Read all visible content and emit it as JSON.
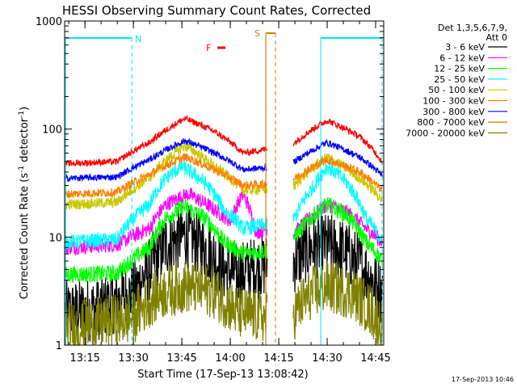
{
  "chart_data": {
    "type": "line",
    "title": "HESSI Observing Summary Count Rates, Corrected",
    "xlabel": "Start Time (17-Sep-13 13:08:42)",
    "ylabel": "Corrected Count Rate (s⁻¹ detector⁻¹)",
    "ylabel_main": "Corrected Count Rate (s",
    "ylabel_mid": " detector",
    "ylabel_end": ")",
    "ylabel_sup": "-1",
    "y_scale": "log",
    "ylim": [
      1,
      1000
    ],
    "xlim": [
      "13:08:42",
      "14:47:30"
    ],
    "xlim_min": [
      788.7,
      887.5
    ],
    "x_ticks": [
      "13:15",
      "13:30",
      "13:45",
      "14:00",
      "14:15",
      "14:30",
      "14:45"
    ],
    "x_ticks_min": [
      795,
      810,
      825,
      840,
      855,
      870,
      885
    ],
    "y_ticks": [
      "1",
      "10",
      "100",
      "1000"
    ],
    "y_ticks_val": [
      1,
      10,
      100,
      1000
    ],
    "grid": false,
    "legend_position": "right",
    "legend_header": [
      "Det 1,3,5,6,7,9,",
      "Att 0"
    ],
    "timestamp": "17-Sep-2013 10:46",
    "gap_min": [
      851.5,
      859.5
    ],
    "series": [
      {
        "name": "3 - 6 keV",
        "color": "#000000",
        "base": 2.3,
        "peak": 10,
        "center": 826,
        "width": 8,
        "noise": 0.3,
        "x": [
          789,
          800,
          810,
          815,
          820,
          826,
          832,
          838,
          842,
          846,
          851,
          860,
          865,
          870,
          875,
          880,
          884,
          887
        ],
        "y": [
          2.0,
          2.2,
          3.0,
          5.0,
          8.5,
          10.5,
          8.0,
          5.0,
          4.5,
          5.0,
          5.5,
          6.0,
          8.0,
          8.5,
          7.5,
          5.5,
          4.0,
          3.0
        ]
      },
      {
        "name": "6 - 12 keV",
        "color": "#ff00ff",
        "base": 8,
        "peak": 25,
        "center": 827,
        "width": 9,
        "noise": 0.07,
        "x": [
          789,
          805,
          815,
          820,
          827,
          835,
          840,
          844,
          848,
          851,
          860,
          866,
          870,
          876,
          882,
          887
        ],
        "y": [
          8,
          8.5,
          12,
          20,
          25,
          18,
          14,
          25,
          11,
          12,
          11,
          16,
          20,
          17,
          12,
          9
        ]
      },
      {
        "name": "12 - 25 keV",
        "color": "#00ff00",
        "base": 4.5,
        "peak": 19,
        "center": 826,
        "width": 9,
        "noise": 0.08,
        "x": [
          789,
          805,
          815,
          820,
          826,
          832,
          838,
          844,
          851,
          860,
          866,
          870,
          876,
          882,
          887
        ],
        "y": [
          4.5,
          4.6,
          8,
          15,
          19,
          15,
          9,
          7,
          7.5,
          10,
          16,
          20,
          16,
          9,
          6
        ]
      },
      {
        "name": "25 - 50 keV",
        "color": "#00ffff",
        "base": 9,
        "peak": 45,
        "center": 825,
        "width": 9,
        "noise": 0.07,
        "x": [
          789,
          805,
          815,
          820,
          825,
          832,
          838,
          844,
          851,
          860,
          866,
          870,
          876,
          882,
          887
        ],
        "y": [
          9,
          9.5,
          20,
          35,
          45,
          32,
          18,
          12,
          13,
          15,
          30,
          45,
          32,
          15,
          9
        ]
      },
      {
        "name": "50 - 100 keV",
        "color": "#c8c800",
        "base": 20,
        "peak": 70,
        "center": 826,
        "width": 10,
        "noise": 0.05,
        "x": [
          789,
          805,
          815,
          826,
          835,
          844,
          851,
          860,
          870,
          880,
          887
        ],
        "y": [
          20,
          21,
          35,
          70,
          45,
          27,
          28,
          30,
          55,
          35,
          22
        ]
      },
      {
        "name": "100 - 300 keV",
        "color": "#ff7f00",
        "base": 25,
        "peak": 55,
        "center": 826,
        "width": 12,
        "noise": 0.04,
        "x": [
          789,
          805,
          815,
          826,
          835,
          844,
          851,
          860,
          870,
          880,
          887
        ],
        "y": [
          25,
          26,
          38,
          55,
          42,
          30,
          31,
          35,
          52,
          40,
          27
        ]
      },
      {
        "name": "300 - 800 keV",
        "color": "#0000ff",
        "base": 35,
        "peak": 78,
        "center": 826,
        "width": 13,
        "noise": 0.03,
        "x": [
          789,
          805,
          815,
          826,
          835,
          844,
          851,
          860,
          870,
          880,
          887
        ],
        "y": [
          35,
          36,
          52,
          78,
          60,
          42,
          44,
          50,
          75,
          55,
          37
        ]
      },
      {
        "name": "800 - 7000 keV",
        "color": "#d08000",
        "base": 0,
        "peak": 0,
        "center": 0,
        "width": 0,
        "noise": 0,
        "x": [],
        "y": []
      },
      {
        "name": "7000 - 20000 keV",
        "color": "#808000",
        "base": 2.0,
        "peak": 3.5,
        "center": 826,
        "width": 10,
        "noise": 0.25,
        "x": [
          789,
          800,
          810,
          818,
          826,
          834,
          842,
          851,
          860,
          865,
          870,
          878,
          884,
          887
        ],
        "y": [
          1.4,
          1.6,
          1.8,
          3.0,
          3.5,
          3.2,
          2.0,
          1.8,
          2.0,
          3.0,
          3.5,
          3.0,
          2.0,
          1.5
        ]
      },
      {
        "name": "",
        "color": "#ff0000",
        "base": 48,
        "peak": 125,
        "center": 826,
        "width": 12,
        "noise": 0.03,
        "x": [
          789,
          805,
          815,
          826,
          835,
          844,
          851,
          860,
          870,
          880,
          887
        ],
        "y": [
          48,
          50,
          75,
          125,
          95,
          60,
          65,
          75,
          120,
          85,
          50
        ]
      }
    ],
    "annotations": {
      "night": {
        "label": "N",
        "color": "#00e5ee",
        "segments": [
          [
            789,
            809.5
          ],
          [
            868,
            887
          ]
        ],
        "dashes": [
          809.5,
          887
        ],
        "solid": [
          789,
          868
        ]
      },
      "flare": {
        "label": "F",
        "color": "#ff0000",
        "x": [
          836,
          838.5
        ]
      },
      "saa": {
        "label": "S",
        "color": "#d08000",
        "segment": [
          851,
          854
        ],
        "dashes": [
          854
        ],
        "solid": [
          851
        ]
      }
    }
  }
}
